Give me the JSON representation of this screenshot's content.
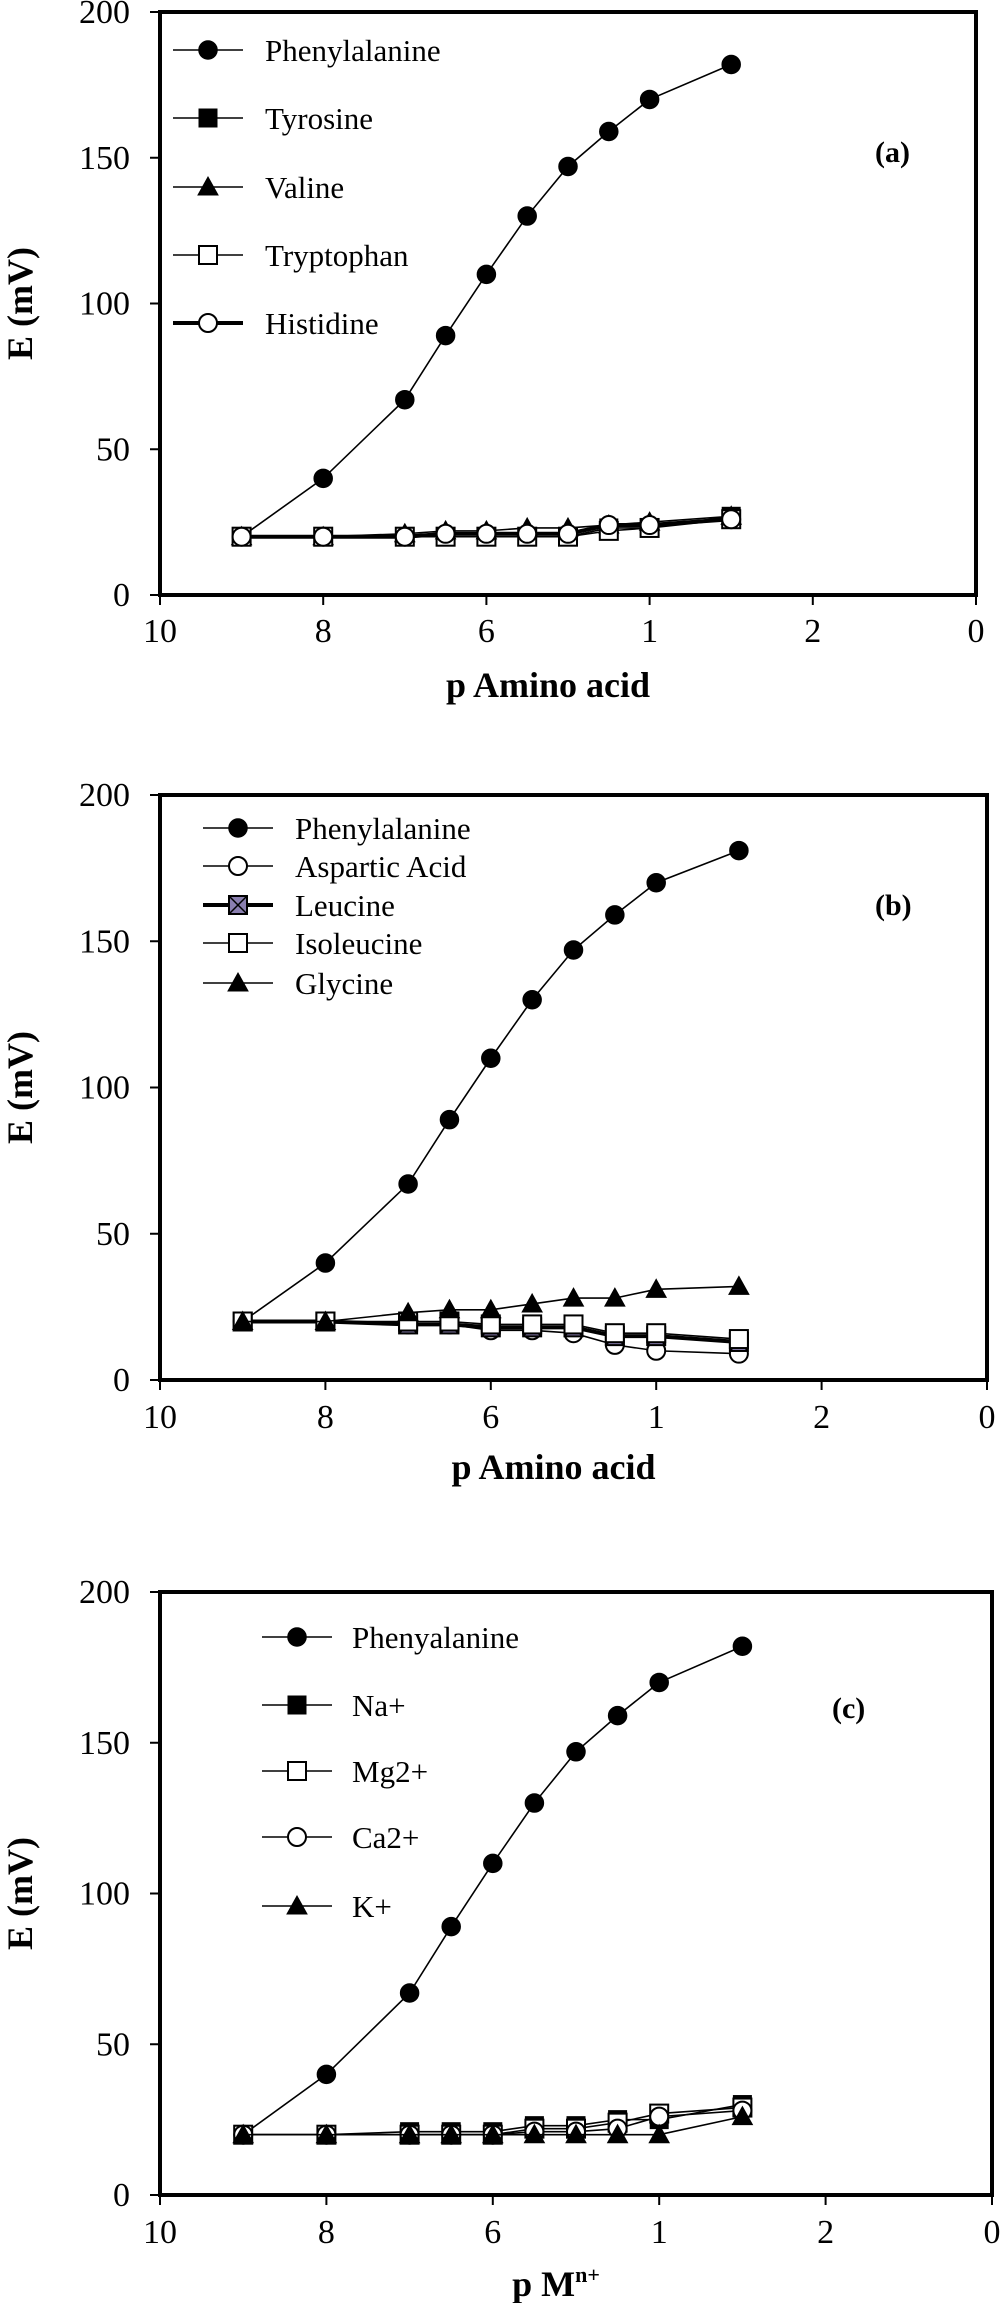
{
  "chart_data": [
    {
      "type": "line",
      "panel_label": "(a)",
      "xlabel": "p Amino acid",
      "ylabel": "E (mV)",
      "x_tick_labels": [
        "10",
        "8",
        "6",
        "1",
        "2",
        "0"
      ],
      "ylim": [
        0,
        200
      ],
      "y_ticks": [
        0,
        50,
        100,
        150,
        200
      ],
      "grid": false,
      "legend_position": "top-left",
      "x": [
        9,
        8,
        7,
        6.5,
        6,
        5.5,
        5,
        4.5,
        4,
        3
      ],
      "series": [
        {
          "name": "Phenylalanine",
          "marker": "filled-circle",
          "line": "thin",
          "values": [
            20,
            40,
            67,
            89,
            110,
            130,
            147,
            159,
            170,
            182
          ]
        },
        {
          "name": "Tyrosine",
          "marker": "filled-square",
          "line": "thin",
          "values": [
            20,
            20,
            20,
            20,
            20,
            20,
            20,
            23,
            23,
            27
          ]
        },
        {
          "name": "Valine",
          "marker": "filled-triangle",
          "line": "thin",
          "values": [
            20,
            20,
            21,
            22,
            22,
            23,
            23,
            24,
            25,
            27
          ]
        },
        {
          "name": "Tryptophan",
          "marker": "open-square",
          "line": "thin",
          "values": [
            20,
            20,
            20,
            20,
            20,
            20,
            20,
            22,
            23,
            26
          ]
        },
        {
          "name": "Histidine",
          "marker": "open-circle",
          "line": "thick",
          "values": [
            20,
            20,
            20,
            21,
            21,
            21,
            21,
            24,
            24,
            26
          ]
        }
      ]
    },
    {
      "type": "line",
      "panel_label": "(b)",
      "xlabel": "p Amino acid",
      "ylabel": "E (mV)",
      "x_tick_labels": [
        "10",
        "8",
        "6",
        "1",
        "2",
        "0"
      ],
      "ylim": [
        0,
        200
      ],
      "y_ticks": [
        0,
        50,
        100,
        150,
        200
      ],
      "grid": false,
      "legend_position": "top-left",
      "x": [
        9,
        8,
        7,
        6.5,
        6,
        5.5,
        5,
        4.5,
        4,
        3
      ],
      "series": [
        {
          "name": "Phenylalanine",
          "marker": "filled-circle",
          "line": "thin",
          "values": [
            20,
            40,
            67,
            89,
            110,
            130,
            147,
            159,
            170,
            181
          ]
        },
        {
          "name": "Aspartic Acid",
          "marker": "open-circle",
          "line": "thin",
          "values": [
            20,
            20,
            19,
            19,
            17,
            17,
            16,
            12,
            10,
            9
          ]
        },
        {
          "name": "Leucine",
          "marker": "crossed-square",
          "line": "thick",
          "values": [
            20,
            20,
            19,
            19,
            18,
            18,
            18,
            15,
            15,
            13
          ]
        },
        {
          "name": "Isoleucine",
          "marker": "open-square",
          "line": "thin",
          "values": [
            20,
            20,
            20,
            20,
            19,
            19,
            19,
            16,
            16,
            14
          ]
        },
        {
          "name": "Glycine",
          "marker": "filled-triangle",
          "line": "thin",
          "values": [
            20,
            20,
            23,
            24,
            24,
            26,
            28,
            28,
            31,
            32
          ]
        }
      ]
    },
    {
      "type": "line",
      "panel_label": "(c)",
      "xlabel_base": "p M",
      "xlabel_sup": "n+",
      "ylabel": "E (mV)",
      "x_tick_labels": [
        "10",
        "8",
        "6",
        "1",
        "2",
        "0"
      ],
      "ylim": [
        0,
        200
      ],
      "y_ticks": [
        0,
        50,
        100,
        150,
        200
      ],
      "grid": false,
      "legend_position": "top-left",
      "x": [
        9,
        8,
        7,
        6.5,
        6,
        5.5,
        5,
        4.5,
        4,
        3
      ],
      "series": [
        {
          "name": "Phenyalanine",
          "marker": "filled-circle",
          "line": "thin",
          "values": [
            20,
            40,
            67,
            89,
            110,
            130,
            147,
            159,
            170,
            182
          ]
        },
        {
          "name": "Na+",
          "marker": "filled-square",
          "line": "thin",
          "values": [
            20,
            20,
            21,
            21,
            21,
            23,
            23,
            25,
            25,
            30
          ]
        },
        {
          "name": "Mg2+",
          "marker": "open-square",
          "line": "thin",
          "values": [
            20,
            20,
            20,
            20,
            20,
            22,
            22,
            24,
            27,
            29
          ]
        },
        {
          "name": "Ca2+",
          "marker": "open-circle",
          "line": "thin",
          "values": [
            20,
            20,
            20,
            20,
            20,
            21,
            21,
            22,
            26,
            28
          ]
        },
        {
          "name": "K+",
          "marker": "filled-triangle",
          "line": "thin",
          "values": [
            20,
            20,
            20,
            20,
            20,
            20,
            20,
            20,
            20,
            26
          ]
        }
      ]
    }
  ]
}
